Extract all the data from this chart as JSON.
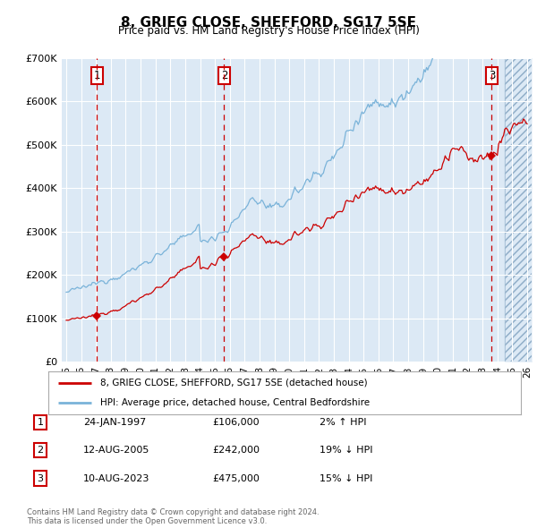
{
  "title": "8, GRIEG CLOSE, SHEFFORD, SG17 5SE",
  "subtitle": "Price paid vs. HM Land Registry's House Price Index (HPI)",
  "ylim": [
    0,
    700000
  ],
  "yticks": [
    0,
    100000,
    200000,
    300000,
    400000,
    500000,
    600000,
    700000
  ],
  "ytick_labels": [
    "£0",
    "£100K",
    "£200K",
    "£300K",
    "£400K",
    "£500K",
    "£600K",
    "£700K"
  ],
  "x_start_year": 1995,
  "x_end_year": 2026,
  "background_color": "#ffffff",
  "plot_bg_color": "#dce9f5",
  "grid_color": "#ffffff",
  "hpi_line_color": "#7ab3d9",
  "price_line_color": "#cc0000",
  "marker_color": "#cc0000",
  "vline_color": "#cc0000",
  "transaction1_date": "24-JAN-1997",
  "transaction1_price": 106000,
  "transaction1_hpi_pct": "2% ↑ HPI",
  "transaction1_year": 1997.07,
  "transaction2_date": "12-AUG-2005",
  "transaction2_price": 242000,
  "transaction2_hpi_pct": "19% ↓ HPI",
  "transaction2_year": 2005.62,
  "transaction3_date": "10-AUG-2023",
  "transaction3_price": 475000,
  "transaction3_hpi_pct": "15% ↓ HPI",
  "transaction3_year": 2023.62,
  "legend_label1": "8, GRIEG CLOSE, SHEFFORD, SG17 5SE (detached house)",
  "legend_label2": "HPI: Average price, detached house, Central Bedfordshire",
  "footer1": "Contains HM Land Registry data © Crown copyright and database right 2024.",
  "footer2": "This data is licensed under the Open Government Licence v3.0."
}
